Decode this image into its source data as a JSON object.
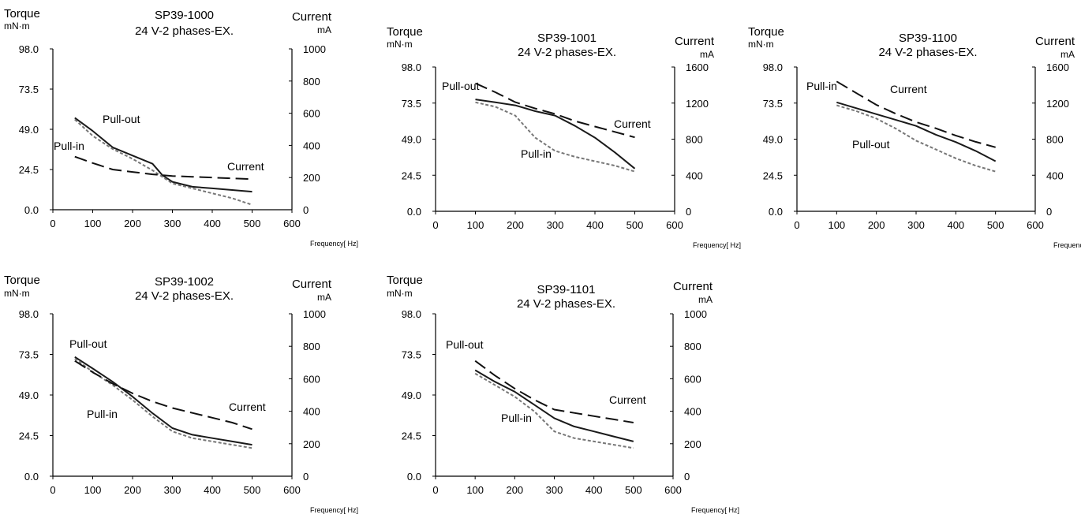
{
  "chart_data": [
    {
      "type": "line",
      "title": "SP39-1000",
      "subtitle": "24 V-2 phases-EX.",
      "ylabel": "Torque",
      "yunit": "mN·m",
      "y2label": "Current",
      "y2unit": "mA",
      "xlabel": "Frequency[ Hz]",
      "xlim": [
        0,
        600
      ],
      "xticks": [
        0,
        100,
        200,
        300,
        400,
        500,
        600
      ],
      "ylim": [
        0,
        98
      ],
      "yticks": [
        "0.0",
        "24.5",
        "49.0",
        "73.5",
        "98.0"
      ],
      "y2lim": [
        0,
        1000
      ],
      "y2ticks": [
        0,
        200,
        400,
        600,
        800,
        1000
      ],
      "series": [
        {
          "name": "Pull-out",
          "axis": "left",
          "style": "solid",
          "x": [
            55,
            100,
            150,
            200,
            250,
            275,
            300,
            350,
            400,
            450,
            500
          ],
          "y": [
            56,
            48,
            38,
            33,
            28,
            21,
            17,
            14,
            13,
            12,
            11
          ]
        },
        {
          "name": "Pull-in",
          "axis": "left",
          "style": "dotted",
          "x": [
            55,
            100,
            150,
            200,
            250,
            300,
            350,
            400,
            450,
            500
          ],
          "y": [
            55,
            45,
            37,
            31,
            24,
            16,
            13,
            10,
            7,
            3
          ]
        },
        {
          "name": "Current",
          "axis": "right",
          "style": "dashed",
          "x": [
            55,
            100,
            150,
            200,
            250,
            300,
            350,
            400,
            450,
            500
          ],
          "y": [
            330,
            290,
            250,
            235,
            220,
            210,
            205,
            200,
            195,
            190
          ]
        }
      ],
      "annotations": [
        "Pull-out",
        "Pull-in",
        "Current"
      ]
    },
    {
      "type": "line",
      "title": "SP39-1001",
      "subtitle": "24 V-2 phases-EX.",
      "ylabel": "Torque",
      "yunit": "mN·m",
      "y2label": "Current",
      "y2unit": "mA",
      "xlabel": "Frequency[ Hz]",
      "xlim": [
        0,
        600
      ],
      "xticks": [
        0,
        100,
        200,
        300,
        400,
        500,
        600
      ],
      "ylim": [
        0,
        98
      ],
      "yticks": [
        "0.0",
        "24.5",
        "49.0",
        "73.5",
        "98.0"
      ],
      "y2lim": [
        0,
        1600
      ],
      "y2ticks": [
        0,
        400,
        800,
        1200,
        1600
      ],
      "series": [
        {
          "name": "Pull-out",
          "axis": "left",
          "style": "solid",
          "x": [
            100,
            150,
            200,
            250,
            300,
            350,
            400,
            450,
            500
          ],
          "y": [
            76,
            74,
            72,
            68,
            65,
            58,
            50,
            40,
            29
          ]
        },
        {
          "name": "Pull-in",
          "axis": "left",
          "style": "dotted",
          "x": [
            100,
            150,
            200,
            250,
            300,
            350,
            400,
            450,
            500
          ],
          "y": [
            74,
            71,
            65,
            50,
            41,
            37,
            34,
            31,
            27
          ]
        },
        {
          "name": "Current",
          "axis": "right",
          "style": "dashed",
          "x": [
            100,
            150,
            200,
            250,
            300,
            350,
            400,
            450,
            500
          ],
          "y": [
            1420,
            1320,
            1210,
            1140,
            1080,
            1000,
            940,
            880,
            820
          ]
        }
      ],
      "annotations": [
        "Pull-out",
        "Pull-in",
        "Current"
      ]
    },
    {
      "type": "line",
      "title": "SP39-1100",
      "subtitle": "24 V-2 phases-EX.",
      "ylabel": "Torque",
      "yunit": "mN·m",
      "y2label": "Current",
      "y2unit": "mA",
      "xlabel": "Frequency[ Hz]",
      "xlim": [
        0,
        600
      ],
      "xticks": [
        0,
        100,
        200,
        300,
        400,
        500,
        600
      ],
      "ylim": [
        0,
        98
      ],
      "yticks": [
        "0.0",
        "24.5",
        "49.0",
        "73.5",
        "98.0"
      ],
      "y2lim": [
        0,
        1600
      ],
      "y2ticks": [
        0,
        400,
        800,
        1200,
        1600
      ],
      "series": [
        {
          "name": "Pull-in",
          "axis": "left",
          "style": "solid",
          "x": [
            100,
            150,
            200,
            250,
            300,
            350,
            400,
            450,
            500
          ],
          "y": [
            74,
            70,
            66,
            62,
            58,
            52,
            47,
            41,
            34
          ]
        },
        {
          "name": "Pull-out",
          "axis": "left",
          "style": "dotted",
          "x": [
            100,
            150,
            200,
            250,
            300,
            350,
            400,
            450,
            500
          ],
          "y": [
            72,
            68,
            63,
            56,
            48,
            42,
            36,
            31,
            27
          ]
        },
        {
          "name": "Current",
          "axis": "right",
          "style": "dashed",
          "x": [
            100,
            150,
            200,
            250,
            300,
            350,
            400,
            450,
            500
          ],
          "y": [
            1440,
            1310,
            1180,
            1080,
            990,
            920,
            840,
            770,
            710
          ]
        }
      ],
      "annotations": [
        "Pull-in",
        "Current",
        "Pull-out"
      ]
    },
    {
      "type": "line",
      "title": "SP39-1002",
      "subtitle": "24 V-2 phases-EX.",
      "ylabel": "Torque",
      "yunit": "mN·m",
      "y2label": "Current",
      "y2unit": "mA",
      "xlabel": "Frequency[ Hz]",
      "xlim": [
        0,
        600
      ],
      "xticks": [
        0,
        100,
        200,
        300,
        400,
        500,
        600
      ],
      "ylim": [
        0,
        98
      ],
      "yticks": [
        "0.0",
        "24.5",
        "49.0",
        "73.5",
        "98.0"
      ],
      "y2lim": [
        0,
        1000
      ],
      "y2ticks": [
        0,
        200,
        400,
        600,
        800,
        1000
      ],
      "series": [
        {
          "name": "Pull-out",
          "axis": "left",
          "style": "solid",
          "x": [
            55,
            100,
            150,
            200,
            250,
            300,
            350,
            400,
            450,
            500
          ],
          "y": [
            72,
            65,
            57,
            48,
            38,
            29,
            25,
            23,
            21,
            19
          ]
        },
        {
          "name": "Pull-in",
          "axis": "left",
          "style": "dotted",
          "x": [
            55,
            100,
            150,
            200,
            250,
            300,
            350,
            400,
            450,
            500
          ],
          "y": [
            71,
            63,
            55,
            46,
            36,
            27,
            23,
            21,
            19,
            17
          ]
        },
        {
          "name": "Current",
          "axis": "right",
          "style": "dashed",
          "x": [
            55,
            100,
            150,
            200,
            250,
            300,
            350,
            400,
            450,
            500
          ],
          "y": [
            710,
            640,
            570,
            510,
            460,
            420,
            390,
            360,
            330,
            290
          ]
        }
      ],
      "annotations": [
        "Pull-out",
        "Pull-in",
        "Current"
      ]
    },
    {
      "type": "line",
      "title": "SP39-1101",
      "subtitle": "24 V-2 phases-EX.",
      "ylabel": "Torque",
      "yunit": "mN·m",
      "y2label": "Current",
      "y2unit": "mA",
      "xlabel": "Frequency[ Hz]",
      "xlim": [
        0,
        600
      ],
      "xticks": [
        0,
        100,
        200,
        300,
        400,
        500,
        600
      ],
      "ylim": [
        0,
        98
      ],
      "yticks": [
        "0.0",
        "24.5",
        "49.0",
        "73.5",
        "98.0"
      ],
      "y2lim": [
        0,
        1000
      ],
      "y2ticks": [
        0,
        200,
        400,
        600,
        800,
        1000
      ],
      "series": [
        {
          "name": "Pull-out",
          "axis": "left",
          "style": "solid",
          "x": [
            100,
            150,
            200,
            250,
            300,
            350,
            400,
            450,
            500
          ],
          "y": [
            64,
            57,
            51,
            43,
            35,
            30,
            27,
            24,
            21
          ]
        },
        {
          "name": "Pull-in",
          "axis": "left",
          "style": "dotted",
          "x": [
            100,
            150,
            200,
            250,
            300,
            350,
            400,
            450,
            500
          ],
          "y": [
            62,
            55,
            48,
            39,
            27,
            23,
            21,
            19,
            17
          ]
        },
        {
          "name": "Current",
          "axis": "right",
          "style": "dashed",
          "x": [
            100,
            150,
            200,
            250,
            300,
            350,
            400,
            450,
            500
          ],
          "y": [
            710,
            620,
            540,
            470,
            410,
            390,
            370,
            350,
            330
          ]
        }
      ],
      "annotations": [
        "Pull-out",
        "Pull-in",
        "Current"
      ]
    }
  ],
  "colors": {
    "solid": "#1a1a1a",
    "dotted": "#777777",
    "dashed": "#111111",
    "axis": "#000000"
  }
}
